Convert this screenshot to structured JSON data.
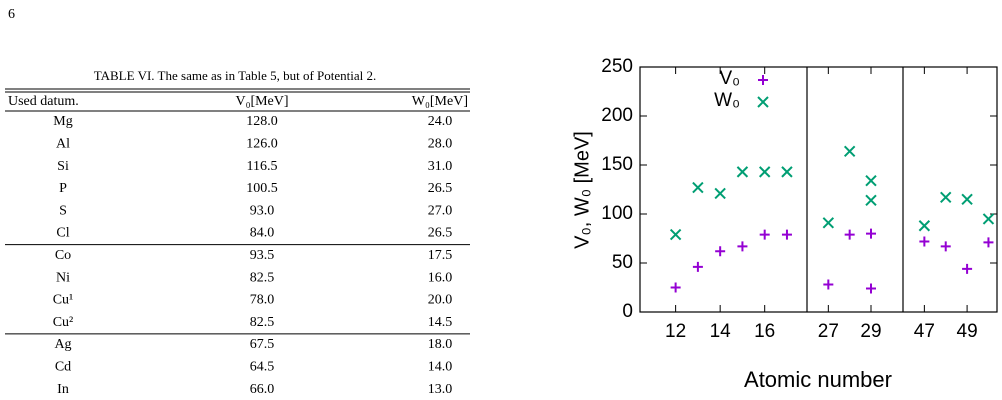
{
  "page_number": "6",
  "table": {
    "caption": "TABLE VI. The same as in Table 5, but of Potential 2.",
    "header": [
      "Used datum.",
      "V₀[MeV]",
      "W₀[MeV]"
    ],
    "row_groups": [
      [
        [
          "Mg",
          "128.0",
          "24.0"
        ],
        [
          "Al",
          "126.0",
          "28.0"
        ],
        [
          "Si",
          "116.5",
          "31.0"
        ],
        [
          "P",
          "100.5",
          "26.5"
        ],
        [
          "S",
          "93.0",
          "27.0"
        ],
        [
          "Cl",
          "84.0",
          "26.5"
        ]
      ],
      [
        [
          "Co",
          "93.5",
          "17.5"
        ],
        [
          "Ni",
          "82.5",
          "16.0"
        ],
        [
          "Cu¹",
          "78.0",
          "20.0"
        ],
        [
          "Cu²",
          "82.5",
          "14.5"
        ]
      ],
      [
        [
          "Ag",
          "67.5",
          "18.0"
        ],
        [
          "Cd",
          "64.5",
          "14.0"
        ],
        [
          "In",
          "66.0",
          "13.0"
        ]
      ]
    ]
  },
  "chart_data": {
    "type": "scatter",
    "xlabel": "Atomic number",
    "ylabel": "V₀, W₀ [MeV]",
    "ylim": [
      0,
      250
    ],
    "yticks": [
      0,
      50,
      100,
      150,
      200,
      250
    ],
    "legend": [
      {
        "name": "V₀",
        "color": "#9400d3",
        "marker": "plus"
      },
      {
        "name": "W₀",
        "color": "#009e73",
        "marker": "cross"
      }
    ],
    "panels": [
      {
        "xlim": [
          10.4,
          17.9
        ],
        "xticks": [
          12,
          14,
          16
        ],
        "series": [
          {
            "x": [
              12,
              13,
              14,
              15,
              16,
              17
            ],
            "values": [
              25,
              46,
              62,
              67,
              79,
              79
            ]
          },
          {
            "x": [
              12,
              13,
              14,
              15,
              16,
              17
            ],
            "values": [
              79,
              127,
              121,
              143,
              143,
              143
            ]
          }
        ]
      },
      {
        "xlim": [
          26,
          30.5
        ],
        "xticks": [
          27,
          29
        ],
        "series": [
          {
            "x": [
              27,
              28,
              29,
              29
            ],
            "values": [
              28,
              79,
              80,
              24
            ]
          },
          {
            "x": [
              27,
              28,
              29,
              29
            ],
            "values": [
              91,
              164,
              134,
              114
            ]
          }
        ]
      },
      {
        "xlim": [
          46,
          50.4
        ],
        "xticks": [
          47,
          49
        ],
        "series": [
          {
            "x": [
              47,
              48,
              49,
              50
            ],
            "values": [
              72,
              67,
              44,
              71
            ]
          },
          {
            "x": [
              47,
              48,
              49,
              50
            ],
            "values": [
              88,
              117,
              115,
              95
            ]
          }
        ]
      }
    ]
  }
}
